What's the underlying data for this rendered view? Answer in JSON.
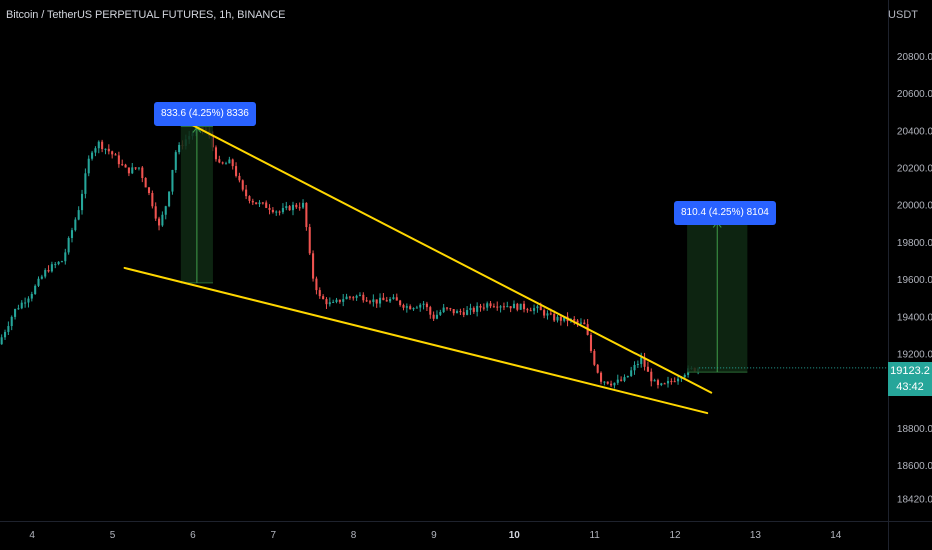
{
  "header": {
    "symbol_title": "Bitcoin / TetherUS PERPETUAL FUTURES, 1h, BINANCE",
    "currency": "USDT"
  },
  "price_tag": {
    "price": "19123.2",
    "countdown": "43:42",
    "color": "#26a69a"
  },
  "measurements": [
    {
      "label": "833.6 (4.25%) 8336"
    },
    {
      "label": "810.4 (4.25%) 8104"
    }
  ],
  "colors": {
    "background": "#000000",
    "up": "#26a69a",
    "down": "#ef5350",
    "trendline": "#ffd700",
    "measure_fill": "#0f2a14",
    "measure_border": "#2a6b35",
    "label_bg": "#2962ff",
    "axis_text": "#b2b5be"
  },
  "chart_data": {
    "type": "candlestick",
    "title": "Bitcoin / TetherUS PERPETUAL FUTURES, 1h, BINANCE",
    "y_axis_label": "USDT",
    "y_ticks": [
      "20800.0",
      "20600.0",
      "20400.0",
      "20200.0",
      "20000.0",
      "19800.0",
      "19600.0",
      "19400.0",
      "19200.0",
      "18800.0",
      "18600.0",
      "18420.0"
    ],
    "x_ticks": [
      "4",
      "5",
      "6",
      "7",
      "8",
      "9",
      "10",
      "11",
      "12",
      "13",
      "14"
    ],
    "ylim": [
      18300,
      21100
    ],
    "xlim": [
      3.6,
      14.65
    ],
    "price_path": [
      [
        3.6,
        19250
      ],
      [
        3.8,
        19430
      ],
      [
        4.0,
        19520
      ],
      [
        4.2,
        19650
      ],
      [
        4.4,
        19700
      ],
      [
        4.6,
        19980
      ],
      [
        4.75,
        20290
      ],
      [
        4.85,
        20330
      ],
      [
        5.0,
        20280
      ],
      [
        5.2,
        20180
      ],
      [
        5.35,
        20200
      ],
      [
        5.5,
        20030
      ],
      [
        5.6,
        19880
      ],
      [
        5.7,
        20020
      ],
      [
        5.8,
        20280
      ],
      [
        5.95,
        20360
      ],
      [
        6.1,
        20420
      ],
      [
        6.2,
        20390
      ],
      [
        6.35,
        20210
      ],
      [
        6.5,
        20230
      ],
      [
        6.65,
        20060
      ],
      [
        6.8,
        20010
      ],
      [
        6.95,
        19990
      ],
      [
        7.1,
        19960
      ],
      [
        7.25,
        19990
      ],
      [
        7.4,
        20000
      ],
      [
        7.5,
        19630
      ],
      [
        7.6,
        19500
      ],
      [
        7.75,
        19460
      ],
      [
        7.9,
        19500
      ],
      [
        8.1,
        19510
      ],
      [
        8.3,
        19480
      ],
      [
        8.5,
        19490
      ],
      [
        8.7,
        19450
      ],
      [
        8.9,
        19470
      ],
      [
        9.0,
        19390
      ],
      [
        9.15,
        19440
      ],
      [
        9.3,
        19420
      ],
      [
        9.5,
        19430
      ],
      [
        9.7,
        19470
      ],
      [
        9.9,
        19460
      ],
      [
        10.1,
        19450
      ],
      [
        10.3,
        19440
      ],
      [
        10.5,
        19390
      ],
      [
        10.7,
        19380
      ],
      [
        10.9,
        19350
      ],
      [
        11.0,
        19170
      ],
      [
        11.1,
        19060
      ],
      [
        11.25,
        19040
      ],
      [
        11.4,
        19060
      ],
      [
        11.5,
        19120
      ],
      [
        11.6,
        19170
      ],
      [
        11.7,
        19080
      ],
      [
        11.8,
        19020
      ],
      [
        11.9,
        19030
      ],
      [
        12.0,
        19060
      ],
      [
        12.1,
        19090
      ],
      [
        12.2,
        19110
      ],
      [
        12.3,
        19123.2
      ]
    ],
    "trendlines": [
      {
        "name": "upper",
        "points": [
          [
            5.85,
            20460
          ],
          [
            12.45,
            18990
          ]
        ]
      },
      {
        "name": "lower",
        "points": [
          [
            5.15,
            19660
          ],
          [
            12.4,
            18880
          ]
        ]
      }
    ],
    "measures": [
      {
        "label": "833.6 (4.25%) 8336",
        "x_start": 5.85,
        "x_end": 6.25,
        "y_low": 19580,
        "y_high": 20420
      },
      {
        "label": "810.4 (4.25%) 8104",
        "x_start": 12.15,
        "x_end": 12.9,
        "y_low": 19100,
        "y_high": 19910
      }
    ],
    "last_price": 19123.2,
    "grid": false
  }
}
